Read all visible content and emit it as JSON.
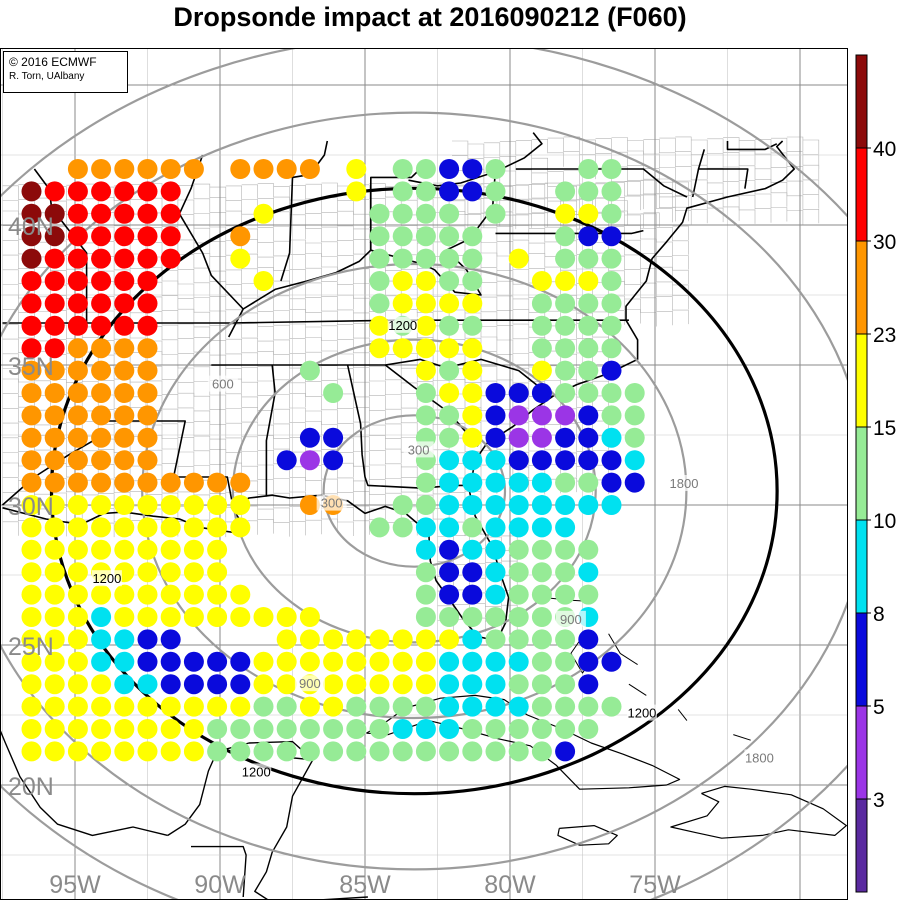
{
  "title": "Dropsonde impact at 2016090212 (F060)",
  "credit": {
    "line1": "© 2016 ECMWF",
    "line2": "R. Torn, UAlbany"
  },
  "map": {
    "region": "Southeastern United States, Gulf of Mexico, Bahamas and Caribbean",
    "lon_range_deg_w": [
      97,
      68
    ],
    "lat_range_deg_n": [
      18.5,
      42.5
    ],
    "lat_labels": [
      {
        "lat": 40,
        "text": "40N"
      },
      {
        "lat": 35,
        "text": "35N"
      },
      {
        "lat": 30,
        "text": "30N"
      },
      {
        "lat": 25,
        "text": "25N"
      },
      {
        "lat": 20,
        "text": "20N"
      }
    ],
    "lon_labels": [
      {
        "lon": -95,
        "text": "95W"
      },
      {
        "lon": -90,
        "text": "90W"
      },
      {
        "lon": -85,
        "text": "85W"
      },
      {
        "lon": -80,
        "text": "80W"
      },
      {
        "lon": -75,
        "text": "75W"
      }
    ],
    "grid_color": "#8a8a8a",
    "land_lines_color": "#000000",
    "county_lines_color": "#b4b4b4"
  },
  "range_rings": {
    "center": {
      "lat": 30.5,
      "lon": -83.3
    },
    "gray_ring_color": "#9c9c9c",
    "highlight_ring_color": "#000000",
    "labels": [
      {
        "text": "300",
        "ring_km": 300
      },
      {
        "text": "300",
        "ring_km": 300
      },
      {
        "text": "600",
        "ring_km": 600
      },
      {
        "text": "900",
        "ring_km": 900
      },
      {
        "text": "900",
        "ring_km": 900
      },
      {
        "text": "1200",
        "ring_km": 1200
      },
      {
        "text": "1200",
        "ring_km": 1200
      },
      {
        "text": "1200",
        "ring_km": 1200
      },
      {
        "text": "1200",
        "ring_km": 1200
      },
      {
        "text": "1800",
        "ring_km": 1800
      },
      {
        "text": "1800",
        "ring_km": 1800
      }
    ]
  },
  "colorbar": {
    "ticks": [
      "3",
      "5",
      "8",
      "10",
      "15",
      "23",
      "30",
      "40"
    ],
    "bins": [
      {
        "range": "<3",
        "color": "#5a2aa0"
      },
      {
        "range": "3-5",
        "color": "#9b35e6"
      },
      {
        "range": "5-8",
        "color": "#0a0adc"
      },
      {
        "range": "8-10",
        "color": "#00e1f0"
      },
      {
        "range": "10-15",
        "color": "#96eb96"
      },
      {
        "range": "15-23",
        "color": "#ffff00"
      },
      {
        "range": "23-30",
        "color": "#ff9600"
      },
      {
        "range": "30-40",
        "color": "#ff0000"
      },
      {
        "range": ">40",
        "color": "#8c0a0a"
      }
    ]
  },
  "impact_grid": {
    "lat_start": 42.0,
    "lat_step": -0.8,
    "lon_start": -96.5,
    "lon_step": 0.8,
    "legend": "0=<3, 1=3-5, 2=5-8, 3=8-10, 4=10-15, 5=15-23, 6=23-30, 7=30-40, 8=>40",
    "rows": [
      "--666666.6666.5.44224...44",
      "8777777.......5.44224..444",
      "8877777...5....4444.4..554",
      "8877777..6.....44444...422",
      "8777777..5.....44444.5.444",
      "777777....5....45544..5554",
      "777777.........45555..4444",
      "777777.........54544..4444",
      "776666.........55555..4444",
      "666666......4....545..5442",
      "666666.......4...4552224444",
      "666666...........4452111244",
      "666666......22...4452112234",
      "666666.....212...4333222223",
      "6666666666.......4333334422",
      "5555555555..66..4433333333",
      "5555555555.....443343333",
      "555555555........32334444",
      "555555555........42234443",
      "5555555555.......42234444",
      "5553555555555....44444443",
      "5553322....55555555344442",
      "55533222225555555533334422",
      "5555332222555555553334442",
      "55555555554455444433334444",
      "5555555544444444333444444",
      "555555554444444444444442"
    ]
  }
}
